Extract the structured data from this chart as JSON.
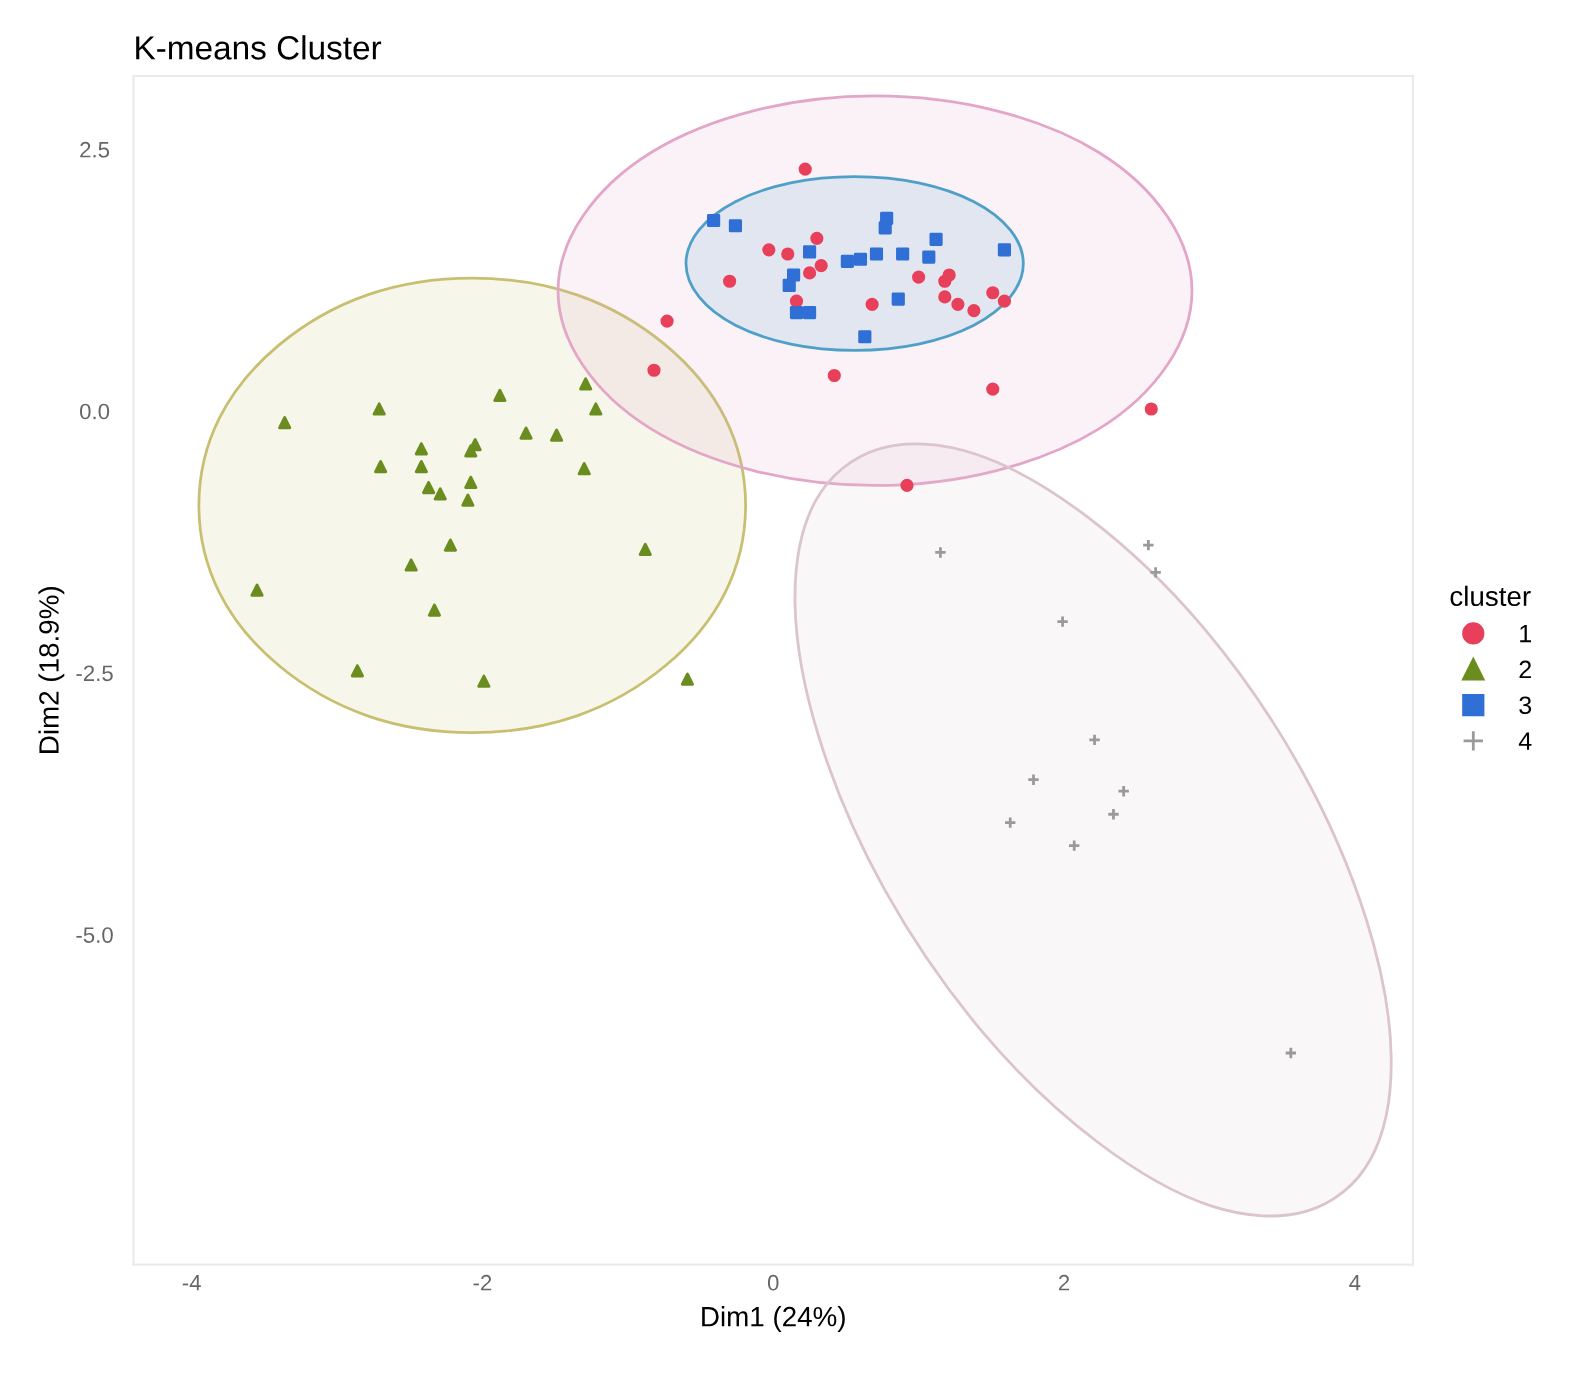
{
  "chart_data": {
    "type": "scatter",
    "title": "K-means Cluster",
    "xlabel": "Dim1 (24%)",
    "ylabel": "Dim2 (18.9%)",
    "legend_title": "cluster",
    "legend": "right",
    "grid": false,
    "xlim": [
      -4.4,
      4.4
    ],
    "ylim": [
      -8.15,
      3.2
    ],
    "xticks": [
      -4,
      -2,
      0,
      2,
      4
    ],
    "yticks": [
      {
        "value": 2.5,
        "label": "2.5"
      },
      {
        "value": 0,
        "label": "0.0"
      },
      {
        "value": -2.5,
        "label": "-2.5"
      },
      {
        "value": -5,
        "label": "-5.0"
      }
    ],
    "series": [
      {
        "type": "area",
        "color": "#c8c070",
        "x": [
          -0.19,
          -0.33,
          -0.74,
          -1.35,
          -2.07,
          -2.79,
          -3.4,
          -3.81,
          -3.95,
          -3.81,
          -3.4,
          -2.79,
          -2.07,
          -1.35,
          -0.74,
          -0.33
        ],
        "values": [
          -0.9,
          -0.07,
          0.63,
          1.11,
          1.27,
          1.11,
          0.63,
          -0.07,
          -0.9,
          -1.73,
          -2.43,
          -2.91,
          -3.07,
          -2.91,
          -2.43,
          -1.73
        ]
      },
      {
        "type": "area",
        "color": "#e4a6c8",
        "x": [
          2.88,
          2.71,
          2.24,
          1.53,
          0.7,
          -0.13,
          -0.84,
          -1.31,
          -1.48,
          -1.31,
          -0.84,
          -0.13,
          0.7,
          1.53,
          2.24,
          2.71
        ],
        "values": [
          1.15,
          1.86,
          2.47,
          2.87,
          3.01,
          2.87,
          2.47,
          1.86,
          1.15,
          0.44,
          -0.17,
          -0.57,
          -0.71,
          -0.57,
          -0.17,
          0.44
        ]
      },
      {
        "type": "area",
        "color": "#4fa0c8",
        "x": [
          1.72,
          1.63,
          1.38,
          1.0,
          0.56,
          0.12,
          -0.26,
          -0.51,
          -0.6,
          -0.51,
          -0.26,
          0.12,
          0.56,
          1.0,
          1.38,
          1.63
        ],
        "values": [
          1.41,
          1.73,
          2.0,
          2.18,
          2.24,
          2.18,
          2.0,
          1.73,
          1.41,
          1.09,
          0.82,
          0.64,
          0.58,
          0.64,
          0.82,
          1.09
        ]
      },
      {
        "type": "area",
        "color": "#dcc4cc",
        "x": [
          3.67,
          4.11,
          4.25,
          4.08,
          3.63,
          2.96,
          2.17,
          1.39,
          0.73,
          0.29,
          0.15,
          0.32,
          0.77,
          1.44,
          2.23,
          3.01
        ],
        "values": [
          -7.64,
          -7.14,
          -6.16,
          -4.86,
          -3.42,
          -2.07,
          -1.02,
          -0.41,
          -0.36,
          -0.86,
          -1.84,
          -3.14,
          -4.58,
          -5.93,
          -6.98,
          -7.59
        ]
      },
      {
        "name": "1",
        "marker": "circle",
        "color": "#e8405a",
        "x": [
          0.22,
          -0.73,
          -0.82,
          -0.03,
          0.1,
          0.3,
          0.33,
          0.25,
          -0.3,
          0.16,
          0.68,
          1.0,
          1.18,
          1.21,
          1.18,
          1.27,
          1.38,
          1.51,
          1.59,
          0.42,
          1.51,
          2.6,
          0.92
        ],
        "values": [
          2.31,
          0.86,
          0.39,
          1.54,
          1.5,
          1.65,
          1.39,
          1.32,
          1.24,
          1.05,
          1.02,
          1.28,
          1.24,
          1.3,
          1.09,
          1.02,
          0.96,
          1.13,
          1.05,
          0.34,
          0.21,
          0.02,
          -0.71
        ]
      },
      {
        "name": "2",
        "marker": "triangle",
        "color": "#6b8c1e",
        "x": [
          -3.36,
          -2.71,
          -1.88,
          -1.29,
          -1.22,
          -1.7,
          -1.49,
          -2.42,
          -2.05,
          -2.08,
          -2.7,
          -2.42,
          -1.3,
          -2.37,
          -2.29,
          -2.08,
          -2.1,
          -2.22,
          -2.49,
          -0.88,
          -3.55,
          -2.33,
          -2.86,
          -1.99,
          -0.59
        ],
        "values": [
          -0.11,
          0.02,
          0.15,
          0.26,
          0.02,
          -0.21,
          -0.23,
          -0.36,
          -0.32,
          -0.38,
          -0.53,
          -0.53,
          -0.55,
          -0.73,
          -0.79,
          -0.68,
          -0.85,
          -1.28,
          -1.47,
          -1.32,
          -1.71,
          -1.9,
          -2.48,
          -2.58,
          -2.56
        ]
      },
      {
        "name": "3",
        "marker": "square",
        "color": "#2f6fd6",
        "x": [
          -0.41,
          -0.26,
          0.78,
          0.77,
          1.12,
          0.25,
          0.51,
          0.6,
          0.71,
          0.89,
          1.07,
          1.59,
          0.14,
          0.11,
          0.86,
          0.16,
          0.25,
          0.63
        ],
        "values": [
          1.82,
          1.77,
          1.84,
          1.75,
          1.64,
          1.52,
          1.43,
          1.45,
          1.5,
          1.5,
          1.47,
          1.54,
          1.3,
          1.2,
          1.07,
          0.94,
          0.94,
          0.71
        ]
      },
      {
        "name": "4",
        "marker": "cross",
        "color": "#9a9a9a",
        "x": [
          1.15,
          2.58,
          2.63,
          1.99,
          2.21,
          1.79,
          2.41,
          1.63,
          2.34,
          2.07,
          3.56
        ],
        "values": [
          -1.35,
          -1.28,
          -1.54,
          -2.01,
          -3.14,
          -3.52,
          -3.63,
          -3.93,
          -3.85,
          -4.15,
          -6.13
        ]
      }
    ]
  }
}
